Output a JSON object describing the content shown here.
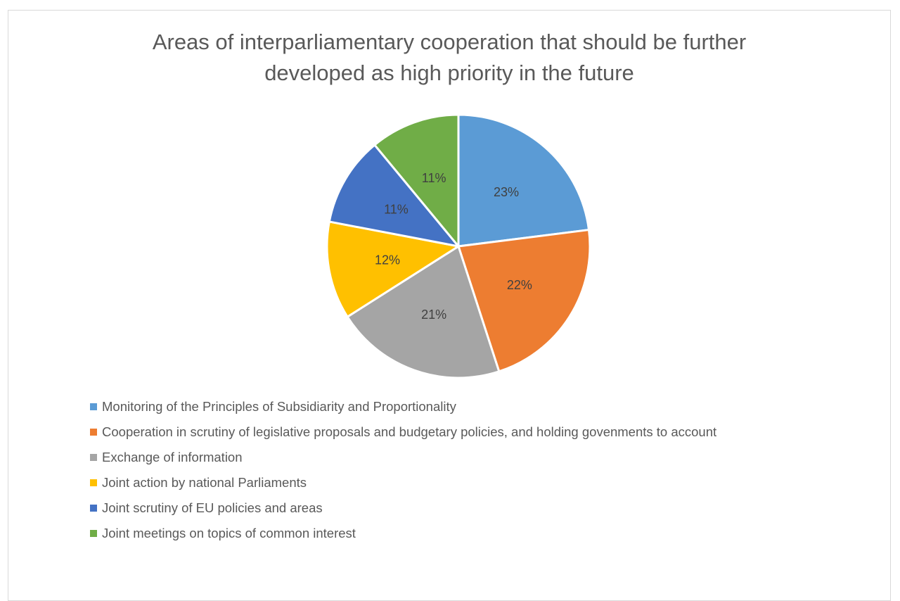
{
  "chart_data": {
    "type": "pie",
    "title_lines": [
      "Areas of interparliamentary cooperation that should be further",
      "developed as high priority in the future"
    ],
    "legend_position": "bottom",
    "slices": [
      {
        "name": "Monitoring of the Principles of Subsidiarity and Proportionality",
        "value": 23,
        "label": "23%",
        "color": "#5B9BD5"
      },
      {
        "name": "Cooperation in scrutiny of legislative proposals and budgetary policies, and holding govenments to account",
        "value": 22,
        "label": "22%",
        "color": "#ED7D31"
      },
      {
        "name": "Exchange of information",
        "value": 21,
        "label": "21%",
        "color": "#A5A5A5"
      },
      {
        "name": "Joint action by national Parliaments",
        "value": 12,
        "label": "12%",
        "color": "#FFC000"
      },
      {
        "name": "Joint scrutiny of EU policies and areas",
        "value": 11,
        "label": "11%",
        "color": "#4472C4"
      },
      {
        "name": "Joint meetings on topics of common interest",
        "value": 11,
        "label": "11%",
        "color": "#70AD47"
      }
    ]
  }
}
